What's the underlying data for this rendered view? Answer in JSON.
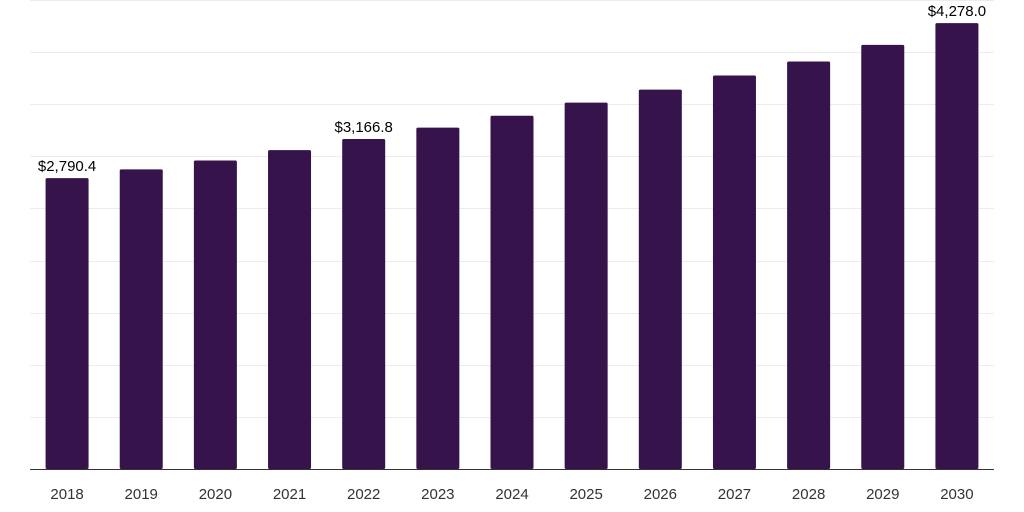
{
  "chart_data": {
    "type": "bar",
    "title": "",
    "xlabel": "",
    "ylabel": "",
    "categories": [
      "2018",
      "2019",
      "2020",
      "2021",
      "2022",
      "2023",
      "2024",
      "2025",
      "2026",
      "2027",
      "2028",
      "2029",
      "2030"
    ],
    "values": [
      2790.4,
      2875,
      2960,
      3060,
      3166.8,
      3275,
      3390,
      3515,
      3640,
      3775,
      3910,
      4070,
      4278.0
    ],
    "data_labels": [
      {
        "index": 0,
        "text": "$2,790.4"
      },
      {
        "index": 4,
        "text": "$3,166.8"
      },
      {
        "index": 12,
        "text": "$4,278.0"
      }
    ],
    "ylim": [
      0,
      4500
    ],
    "y_gridlines": [
      0,
      500,
      1000,
      1500,
      2000,
      2500,
      3000,
      3500,
      4000,
      4500
    ],
    "show_y_tick_labels": false,
    "grid": true,
    "legend": "none",
    "colors": {
      "bar": "#36134a",
      "grid": "#ececec",
      "axis": "#333333",
      "text": "#333333"
    }
  }
}
